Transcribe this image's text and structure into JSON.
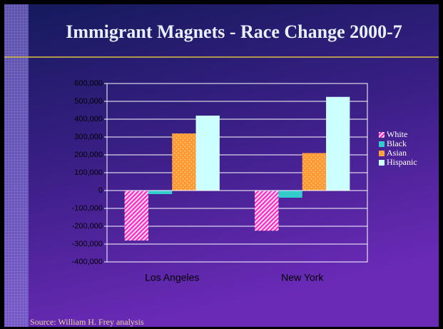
{
  "chart_data": {
    "type": "bar",
    "title": "Immigrant Magnets - Race Change 2000-7",
    "source": "Source: William H. Frey analysis",
    "categories": [
      "Los Angeles",
      "New  York"
    ],
    "series": [
      {
        "name": "White",
        "color": "#ff33cc",
        "values": [
          -280000,
          -225000
        ]
      },
      {
        "name": "Black",
        "color": "#33cccc",
        "values": [
          -20000,
          -40000
        ]
      },
      {
        "name": "Asian",
        "color": "#ff9933",
        "values": [
          320000,
          210000
        ]
      },
      {
        "name": "Hispanic",
        "color": "#ccffff",
        "values": [
          420000,
          525000
        ]
      }
    ],
    "ylim": [
      -400000,
      600000
    ],
    "yticks": [
      {
        "value": -400000,
        "label": "-400,000"
      },
      {
        "value": -300000,
        "label": "-300,000"
      },
      {
        "value": -200000,
        "label": "-200,000"
      },
      {
        "value": -100000,
        "label": "-100,000"
      },
      0,
      {
        "value": 100000,
        "label": "100,000"
      },
      {
        "value": 200000,
        "label": "200,000"
      },
      {
        "value": 300000,
        "label": "300,000"
      },
      {
        "value": 400000,
        "label": "400,000"
      },
      {
        "value": 500000,
        "label": "500,000"
      },
      {
        "value": 600000,
        "label": "600,000"
      }
    ],
    "grid": true,
    "legend": "right"
  }
}
